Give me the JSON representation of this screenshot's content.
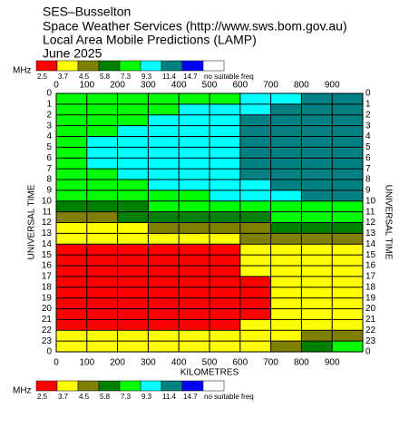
{
  "chart_data": {
    "type": "heatmap",
    "title_lines": [
      "SES–Busselton",
      "Space Weather Services (http://www.sws.bom.gov.au)",
      "Local Area Mobile Predictions (LAMP)",
      "June 2025"
    ],
    "legend_unit": "MHz",
    "legend_levels": [
      2.5,
      3.7,
      4.5,
      5.8,
      7.3,
      9.3,
      11.4,
      14.7
    ],
    "legend_colors": [
      "#ff0000",
      "#ffff00",
      "#808000",
      "#008000",
      "#00ff00",
      "#00ffff",
      "#008080",
      "#0000ff",
      "#ffffff"
    ],
    "no_freq_label": "no suitable freq",
    "xlabel": "KILOMETRES",
    "ylabel": "UNIVERSAL TIME",
    "xlim": [
      0,
      1000
    ],
    "xticks": [
      0,
      100,
      200,
      300,
      400,
      500,
      600,
      700,
      800,
      900
    ],
    "ylim": [
      0,
      24
    ],
    "yticks": [
      0,
      1,
      2,
      3,
      4,
      5,
      6,
      7,
      8,
      9,
      10,
      11,
      12,
      13,
      14,
      15,
      16,
      17,
      18,
      19,
      20,
      21,
      22,
      23,
      {
        "value": 24,
        "label": "0"
      }
    ],
    "x_step": 100,
    "y_step": 1,
    "values": [
      [
        8,
        8,
        8,
        8,
        8,
        8,
        10,
        10,
        12,
        12
      ],
      [
        8,
        8,
        8,
        8,
        10,
        10,
        10,
        12,
        12,
        12
      ],
      [
        8,
        8,
        8,
        10,
        10,
        10,
        12,
        12,
        12,
        12
      ],
      [
        8,
        8,
        10,
        10,
        10,
        10,
        12,
        12,
        12,
        12
      ],
      [
        8,
        10,
        10,
        10,
        10,
        10,
        12,
        12,
        12,
        12
      ],
      [
        8,
        10,
        10,
        10,
        10,
        10,
        12,
        12,
        12,
        12
      ],
      [
        8,
        10,
        10,
        10,
        10,
        10,
        12,
        12,
        12,
        12
      ],
      [
        8,
        8,
        10,
        10,
        10,
        10,
        12,
        12,
        12,
        12
      ],
      [
        8,
        8,
        8,
        10,
        10,
        10,
        10,
        12,
        12,
        12
      ],
      [
        8,
        8,
        8,
        8,
        8,
        10,
        10,
        10,
        12,
        12
      ],
      [
        6.5,
        6.5,
        6.5,
        8,
        8,
        8,
        8,
        8,
        8,
        8
      ],
      [
        5,
        5,
        6.5,
        6.5,
        6.5,
        6.5,
        6.5,
        8,
        8,
        8
      ],
      [
        4,
        4,
        4,
        5,
        5,
        5,
        5,
        6.5,
        6.5,
        6.5
      ],
      [
        4,
        4,
        4,
        4,
        4,
        4,
        5,
        5,
        5,
        5
      ],
      [
        3,
        3,
        3,
        3,
        3,
        3,
        4,
        4,
        4,
        4
      ],
      [
        3,
        3,
        3,
        3,
        3,
        3,
        4,
        4,
        4,
        4
      ],
      [
        3,
        3,
        3,
        3,
        3,
        3,
        4,
        4,
        4,
        4
      ],
      [
        3,
        3,
        3,
        3,
        3,
        3,
        3,
        4,
        4,
        4
      ],
      [
        3,
        3,
        3,
        3,
        3,
        3,
        3,
        4,
        4,
        4
      ],
      [
        3,
        3,
        3,
        3,
        3,
        3,
        3,
        4,
        4,
        4
      ],
      [
        3,
        3,
        3,
        3,
        3,
        3,
        3,
        4,
        4,
        4
      ],
      [
        3,
        3,
        3,
        3,
        3,
        3,
        4,
        4,
        4,
        4
      ],
      [
        4,
        4,
        4,
        4,
        4,
        4,
        4,
        4,
        5,
        5
      ],
      [
        4,
        4,
        4,
        4,
        4,
        4,
        4,
        5,
        6.5,
        8
      ]
    ],
    "grid": true
  }
}
